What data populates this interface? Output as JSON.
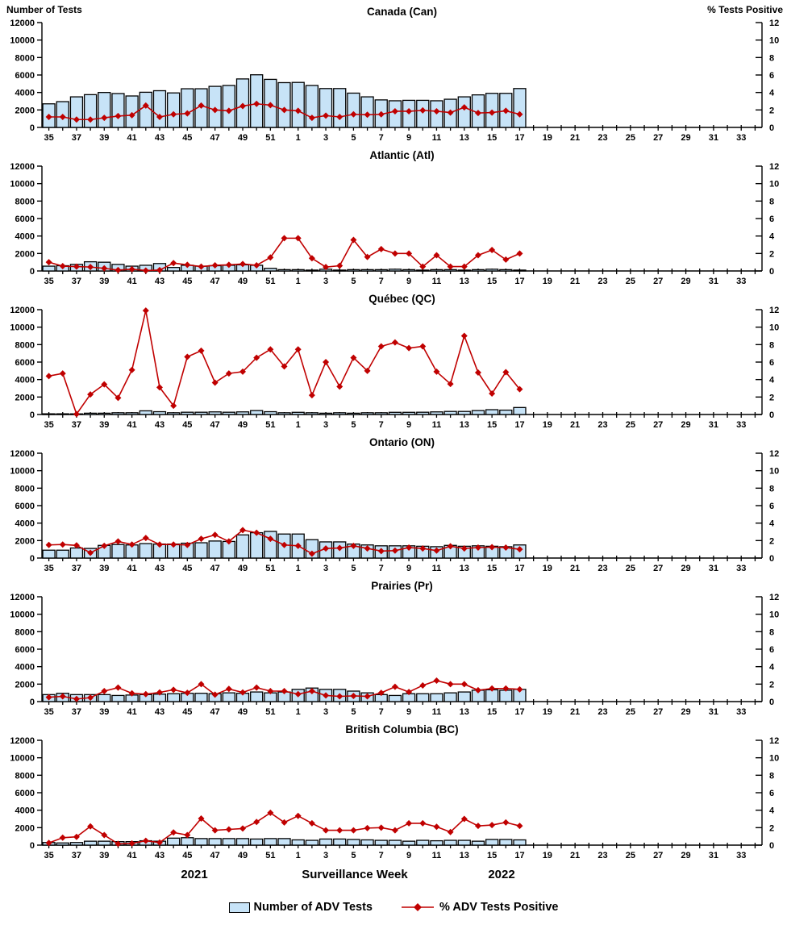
{
  "header": {
    "left_axis_title": "Number of Tests",
    "right_axis_title": "% Tests Positive"
  },
  "footer": {
    "year_left": "2021",
    "xaxis_title": "Surveillance Week",
    "year_right": "2022",
    "legend_bar_label": "Number of ADV Tests",
    "legend_line_label": "% ADV Tests Positive"
  },
  "colors": {
    "bar_fill": "#C7E3F7",
    "bar_stroke": "#000000",
    "line": "#C00000",
    "marker": "#C00000",
    "axis": "#000000",
    "text": "#000000"
  },
  "axis": {
    "weeks": [
      35,
      36,
      37,
      38,
      39,
      40,
      41,
      42,
      43,
      44,
      45,
      46,
      47,
      48,
      49,
      50,
      51,
      52,
      1,
      2,
      3,
      4,
      5,
      6,
      7,
      8,
      9,
      10,
      11,
      12,
      13,
      14,
      15,
      16,
      17,
      18,
      19,
      20,
      21,
      22,
      23,
      24,
      25,
      26,
      27,
      28,
      29,
      30,
      31,
      32,
      33,
      34
    ],
    "left_label": "Number of Tests",
    "right_label": "% Tests Positive",
    "x_label": "Surveillance Week",
    "left_range": [
      0,
      12000
    ],
    "left_tick_step": 2000,
    "right_range": [
      0,
      12
    ],
    "right_tick_step": 2,
    "label_parity": "odd"
  },
  "chart_data": [
    {
      "type": "bar+line",
      "title": "Canada (Can)",
      "series": [
        {
          "name": "Number of ADV Tests",
          "axis": "left",
          "values": [
            2700,
            2950,
            3500,
            3750,
            4000,
            3875,
            3600,
            4025,
            4200,
            3950,
            4425,
            4425,
            4700,
            4800,
            5550,
            6025,
            5500,
            5125,
            5150,
            4800,
            4450,
            4450,
            3925,
            3500,
            3150,
            3050,
            3100,
            3100,
            3050,
            3225,
            3500,
            3725,
            3900,
            3900,
            4450
          ]
        },
        {
          "name": "% ADV Tests Positive",
          "axis": "right",
          "values": [
            1.2,
            1.2,
            0.9,
            0.9,
            1.1,
            1.3,
            1.4,
            2.5,
            1.2,
            1.5,
            1.6,
            2.5,
            2.0,
            1.9,
            2.45,
            2.7,
            2.55,
            2.0,
            1.9,
            1.1,
            1.35,
            1.2,
            1.5,
            1.45,
            1.5,
            1.85,
            1.85,
            1.95,
            1.85,
            1.7,
            2.3,
            1.65,
            1.7,
            1.9,
            1.5
          ]
        }
      ]
    },
    {
      "type": "bar+line",
      "title": "Atlantic (Atl)",
      "series": [
        {
          "name": "Number of ADV Tests",
          "axis": "left",
          "values": [
            550,
            600,
            750,
            1050,
            1000,
            750,
            550,
            650,
            850,
            400,
            650,
            550,
            600,
            650,
            700,
            650,
            300,
            150,
            150,
            100,
            200,
            100,
            150,
            150,
            150,
            200,
            150,
            100,
            150,
            150,
            100,
            150,
            200,
            150,
            100
          ]
        },
        {
          "name": "% ADV Tests Positive",
          "axis": "right",
          "values": [
            1.0,
            0.55,
            0.5,
            0.45,
            0.3,
            0.1,
            0.2,
            0.05,
            0.1,
            0.9,
            0.7,
            0.5,
            0.65,
            0.7,
            0.8,
            0.65,
            1.55,
            3.75,
            3.75,
            1.45,
            0.45,
            0.6,
            3.55,
            1.6,
            2.5,
            2.0,
            2.0,
            0.5,
            1.8,
            0.5,
            0.5,
            1.8,
            2.4,
            1.3,
            2.0
          ]
        }
      ]
    },
    {
      "type": "bar+line",
      "title": "Québec (QC)",
      "series": [
        {
          "name": "Number of ADV Tests",
          "axis": "left",
          "values": [
            80,
            80,
            60,
            150,
            150,
            200,
            200,
            420,
            320,
            200,
            260,
            260,
            300,
            260,
            300,
            450,
            320,
            200,
            250,
            200,
            150,
            200,
            150,
            200,
            200,
            250,
            250,
            260,
            300,
            350,
            350,
            450,
            550,
            500,
            800
          ]
        },
        {
          "name": "% ADV Tests Positive",
          "axis": "right",
          "values": [
            4.4,
            4.7,
            0.05,
            2.3,
            3.45,
            1.9,
            5.1,
            11.9,
            3.1,
            1.0,
            6.6,
            7.3,
            3.65,
            4.7,
            4.9,
            6.5,
            7.45,
            5.5,
            7.45,
            2.2,
            6.0,
            3.2,
            6.5,
            5.0,
            7.8,
            8.25,
            7.6,
            7.8,
            4.9,
            3.5,
            9.0,
            4.8,
            2.4,
            4.85,
            2.9
          ]
        }
      ]
    },
    {
      "type": "bar+line",
      "title": "Ontario (ON)",
      "series": [
        {
          "name": "Number of ADV Tests",
          "axis": "left",
          "values": [
            900,
            900,
            1150,
            1100,
            1450,
            1550,
            1500,
            1650,
            1600,
            1600,
            1700,
            1750,
            1950,
            1900,
            2650,
            2900,
            3050,
            2750,
            2750,
            2100,
            1850,
            1850,
            1600,
            1500,
            1400,
            1400,
            1400,
            1350,
            1300,
            1450,
            1350,
            1400,
            1350,
            1300,
            1500
          ]
        },
        {
          "name": "% ADV Tests Positive",
          "axis": "right",
          "values": [
            1.5,
            1.55,
            1.45,
            0.6,
            1.4,
            1.9,
            1.55,
            2.3,
            1.55,
            1.55,
            1.5,
            2.2,
            2.65,
            1.9,
            3.2,
            2.9,
            2.2,
            1.5,
            1.4,
            0.5,
            1.1,
            1.15,
            1.4,
            1.1,
            0.8,
            0.85,
            1.2,
            1.1,
            0.85,
            1.35,
            1.1,
            1.2,
            1.25,
            1.2,
            1.0
          ]
        }
      ]
    },
    {
      "type": "bar+line",
      "title": "Prairies (Pr)",
      "series": [
        {
          "name": "Number of ADV Tests",
          "axis": "left",
          "values": [
            800,
            950,
            800,
            800,
            800,
            700,
            750,
            800,
            850,
            900,
            950,
            950,
            900,
            1000,
            950,
            1100,
            1000,
            1100,
            1400,
            1550,
            1400,
            1400,
            1200,
            1000,
            800,
            700,
            900,
            900,
            900,
            1000,
            1100,
            1300,
            1350,
            1300,
            1400
          ]
        },
        {
          "name": "% ADV Tests Positive",
          "axis": "right",
          "values": [
            0.5,
            0.6,
            0.3,
            0.45,
            1.2,
            1.6,
            0.95,
            0.85,
            1.05,
            1.35,
            1.0,
            2.0,
            0.8,
            1.45,
            1.05,
            1.6,
            1.2,
            1.2,
            0.85,
            1.2,
            0.7,
            0.6,
            0.65,
            0.6,
            1.0,
            1.7,
            1.1,
            1.85,
            2.4,
            2.0,
            2.0,
            1.3,
            1.5,
            1.5,
            1.4
          ]
        }
      ]
    },
    {
      "type": "bar+line",
      "title": "British Columbia (BC)",
      "series": [
        {
          "name": "Number of ADV Tests",
          "axis": "left",
          "values": [
            300,
            250,
            300,
            450,
            450,
            400,
            400,
            500,
            450,
            800,
            850,
            750,
            750,
            750,
            750,
            700,
            750,
            750,
            600,
            550,
            700,
            700,
            650,
            600,
            550,
            550,
            450,
            550,
            500,
            550,
            550,
            450,
            650,
            650,
            600
          ]
        },
        {
          "name": "% ADV Tests Positive",
          "axis": "right",
          "values": [
            0.25,
            0.85,
            0.95,
            2.15,
            1.15,
            0.15,
            0.2,
            0.5,
            0.3,
            1.45,
            1.15,
            3.05,
            1.7,
            1.8,
            1.9,
            2.65,
            3.7,
            2.6,
            3.35,
            2.5,
            1.7,
            1.7,
            1.7,
            1.95,
            2.0,
            1.7,
            2.5,
            2.5,
            2.1,
            1.5,
            3.0,
            2.2,
            2.3,
            2.6,
            2.2
          ]
        }
      ]
    }
  ]
}
